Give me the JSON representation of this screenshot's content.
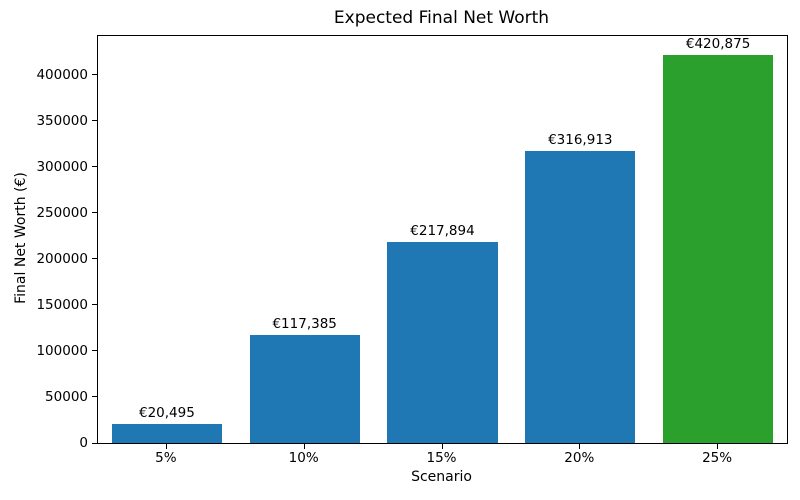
{
  "chart_data": {
    "type": "bar",
    "title": "Expected Final Net Worth",
    "xlabel": "Scenario",
    "ylabel": "Final Net Worth (€)",
    "categories": [
      "5%",
      "10%",
      "15%",
      "20%",
      "25%"
    ],
    "values": [
      20495,
      117385,
      217894,
      316913,
      420875
    ],
    "bar_labels": [
      "€20,495",
      "€117,385",
      "€217,894",
      "€316,913",
      "€420,875"
    ],
    "bar_colors": [
      "#1f77b4",
      "#1f77b4",
      "#1f77b4",
      "#1f77b4",
      "#2ca02c"
    ],
    "ylim": [
      0,
      442000
    ],
    "yticks": [
      0,
      50000,
      100000,
      150000,
      200000,
      250000,
      300000,
      350000,
      400000
    ],
    "grid": false,
    "legend": "none",
    "colors": {
      "bar_blue": "#1f77b4",
      "bar_green": "#2ca02c",
      "axis": "#000000",
      "text": "#000000",
      "background": "#ffffff"
    }
  }
}
